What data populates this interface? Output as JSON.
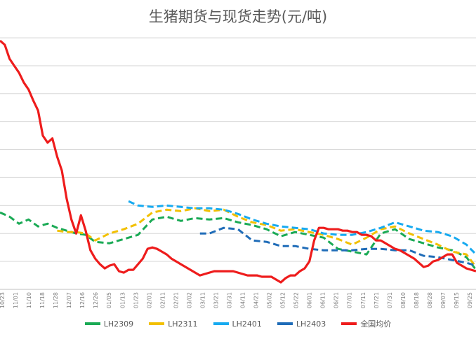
{
  "chart_data": {
    "type": "line",
    "title": "生猪期货与现货走势(元/吨)",
    "xlabel": "",
    "ylabel": "",
    "ylim": [
      10000,
      28500
    ],
    "y_step": 2000,
    "grid": true,
    "legend_position": "bottom",
    "x_ticks": [
      "10/23",
      "11/01",
      "11/10",
      "11/18",
      "11/28",
      "12/07",
      "12/16",
      "12/26",
      "01/05",
      "01/13",
      "01/23",
      "02/01",
      "02/11",
      "02/21",
      "03/02",
      "03/11",
      "03/21",
      "03/31",
      "04/11",
      "04/21",
      "05/02",
      "05/12",
      "05/22",
      "06/01",
      "06/11",
      "06/21",
      "07/01",
      "07/11",
      "07/21",
      "07/31",
      "08/10",
      "08/18",
      "08/28",
      "09/07",
      "09/15",
      "09/25"
    ],
    "series": [
      {
        "name": "LH2309",
        "color": "#1aaa55",
        "dashed": true,
        "x": [
          0,
          2,
          4,
          6,
          8,
          10,
          12,
          14,
          16,
          18,
          20,
          23,
          26,
          29,
          32,
          35,
          38,
          41,
          44,
          47,
          50,
          53,
          56,
          59,
          62,
          65,
          68,
          71,
          74,
          77,
          80,
          83,
          86,
          89,
          92,
          95,
          98,
          100
        ],
        "y": [
          15500,
          15200,
          14700,
          15000,
          14500,
          14700,
          14400,
          14200,
          14000,
          13900,
          13400,
          13300,
          13600,
          13900,
          15000,
          15200,
          14900,
          15100,
          15000,
          15100,
          14800,
          14600,
          14300,
          13800,
          14100,
          13900,
          13700,
          12900,
          12700,
          12500,
          14000,
          14300,
          13600,
          13300,
          13000,
          12800,
          12300,
          11400
        ]
      },
      {
        "name": "LH2311",
        "color": "#f2c000",
        "dashed": true,
        "x": [
          12,
          14,
          16,
          18,
          20,
          23,
          26,
          29,
          32,
          35,
          38,
          41,
          44,
          47,
          50,
          53,
          56,
          59,
          62,
          65,
          68,
          71,
          74,
          77,
          80,
          83,
          86,
          89,
          92,
          95,
          98,
          100
        ],
        "y": [
          14200,
          14100,
          14100,
          14000,
          13500,
          14000,
          14300,
          14700,
          15500,
          15700,
          15600,
          15800,
          15600,
          15700,
          15200,
          14800,
          14600,
          14200,
          14300,
          14100,
          13900,
          13600,
          13200,
          13700,
          14300,
          14500,
          14000,
          13600,
          13200,
          12700,
          12500,
          11600
        ]
      },
      {
        "name": "LH2401",
        "color": "#17aaf0",
        "dashed": true,
        "x": [
          27,
          29,
          32,
          35,
          38,
          41,
          44,
          47,
          50,
          53,
          56,
          59,
          62,
          65,
          68,
          71,
          74,
          77,
          80,
          83,
          86,
          89,
          92,
          95,
          98,
          100
        ],
        "y": [
          16300,
          16000,
          15900,
          16000,
          15900,
          15800,
          15800,
          15700,
          15400,
          15000,
          14700,
          14500,
          14400,
          14300,
          14000,
          13900,
          13900,
          14100,
          14400,
          14800,
          14500,
          14200,
          14100,
          13800,
          13200,
          12500
        ]
      },
      {
        "name": "LH2403",
        "color": "#1f6cb8",
        "dashed": true,
        "x": [
          42,
          44,
          47,
          50,
          53,
          56,
          59,
          62,
          65,
          68,
          71,
          74,
          77,
          80,
          83,
          86,
          89,
          92,
          95,
          98,
          100
        ],
        "y": [
          14000,
          14000,
          14400,
          14300,
          13500,
          13400,
          13100,
          13100,
          12900,
          12800,
          12800,
          12800,
          12900,
          12900,
          12800,
          12800,
          12400,
          12300,
          12100,
          11900,
          11700
        ]
      },
      {
        "name": "全国均价",
        "color": "#ee1c1c",
        "dashed": false,
        "x": [
          0,
          1,
          2,
          3,
          4,
          5,
          6,
          7,
          8,
          9,
          10,
          11,
          12,
          13,
          14,
          15,
          16,
          17,
          18,
          19,
          20,
          21,
          22,
          23,
          24,
          25,
          26,
          27,
          28,
          29,
          30,
          31,
          32,
          33,
          34,
          35,
          36,
          37,
          38,
          39,
          40,
          41,
          42,
          43,
          44,
          45,
          46,
          47,
          48,
          49,
          50,
          51,
          52,
          53,
          54,
          55,
          56,
          57,
          58,
          59,
          60,
          61,
          62,
          63,
          64,
          65,
          66,
          67,
          68,
          69,
          70,
          71,
          72,
          73,
          74,
          75,
          76,
          77,
          78,
          79,
          80,
          81,
          82,
          83,
          84,
          85,
          86,
          87,
          88,
          89,
          90,
          91,
          92,
          93,
          94,
          95,
          96,
          97,
          98,
          99,
          100
        ],
        "y": [
          27800,
          27500,
          26500,
          26000,
          25500,
          24800,
          24300,
          23500,
          22800,
          21000,
          20500,
          20800,
          19500,
          18500,
          16500,
          15000,
          14000,
          15300,
          14200,
          12800,
          12200,
          11800,
          11500,
          11700,
          11800,
          11300,
          11200,
          11400,
          11400,
          11800,
          12200,
          12900,
          13000,
          12900,
          12700,
          12500,
          12200,
          12000,
          11800,
          11600,
          11400,
          11200,
          11000,
          11100,
          11200,
          11300,
          11300,
          11300,
          11300,
          11300,
          11200,
          11100,
          11000,
          11000,
          11000,
          10900,
          10900,
          10900,
          10700,
          10500,
          10800,
          11000,
          11000,
          11300,
          11500,
          12000,
          13500,
          14400,
          14400,
          14300,
          14300,
          14300,
          14200,
          14200,
          14100,
          14100,
          13900,
          13900,
          13800,
          13500,
          13500,
          13300,
          13100,
          12900,
          12800,
          12600,
          12400,
          12200,
          11900,
          11600,
          11700,
          12000,
          12100,
          12300,
          12500,
          12500,
          11900,
          11700,
          11500,
          11400,
          11300
        ]
      }
    ]
  }
}
